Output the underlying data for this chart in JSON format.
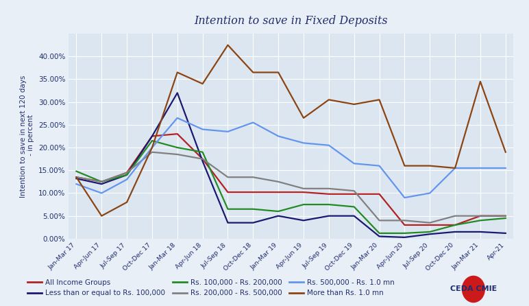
{
  "title": "Intention to save in Fixed Deposits",
  "ylabel": "Intention to save in next 120 days\n - in percent",
  "plot_bg_color": "#dce6f1",
  "fig_bg_color": "#e9eff6",
  "xlabels": [
    "Jan-Mar 17",
    "Apr-Jun 17",
    "Jul-Sep 17",
    "Oct-Dec 17",
    "Jan-Mar 18",
    "Apr-Jun 18",
    "Jul-Sep 18",
    "Oct-Dec 18",
    "Jan-Mar 19",
    "Apr-Jun 19",
    "Jul-Sep 19",
    "Oct-Dec 19",
    "Jan-Mar 20",
    "Apr-Jun 20",
    "Jul-Sep 20",
    "Oct-Dec 20",
    "Jan-Mar 21",
    "Apr-21"
  ],
  "series": [
    {
      "label": "All Income Groups",
      "color": "#b22222",
      "linewidth": 1.6,
      "values": [
        13.5,
        12.5,
        14.5,
        22.5,
        23.0,
        17.5,
        10.2,
        10.2,
        10.2,
        10.2,
        9.8,
        9.8,
        9.8,
        3.0,
        3.0,
        3.0,
        5.0,
        5.0
      ]
    },
    {
      "label": "Less than or equal to Rs. 100,000",
      "color": "#191970",
      "linewidth": 1.6,
      "values": [
        13.2,
        12.0,
        14.0,
        22.5,
        32.0,
        17.0,
        3.5,
        3.5,
        5.0,
        4.0,
        5.0,
        5.0,
        0.5,
        0.3,
        1.0,
        1.5,
        1.5,
        1.2
      ]
    },
    {
      "label": "Rs. 100,000 - Rs. 200,000",
      "color": "#228b22",
      "linewidth": 1.6,
      "values": [
        14.8,
        12.5,
        14.0,
        21.5,
        20.0,
        19.0,
        6.5,
        6.5,
        6.0,
        7.5,
        7.5,
        7.0,
        1.2,
        1.2,
        1.5,
        3.0,
        4.0,
        4.5
      ]
    },
    {
      "label": "Rs. 200,000 - Rs. 500,000",
      "color": "#808080",
      "linewidth": 1.6,
      "values": [
        13.5,
        12.5,
        14.5,
        19.0,
        18.5,
        17.5,
        13.5,
        13.5,
        12.5,
        11.0,
        11.0,
        10.5,
        4.0,
        4.0,
        3.5,
        5.0,
        5.0,
        5.0
      ]
    },
    {
      "label": "Rs. 500,000 - Rs. 1.0 mn",
      "color": "#6495ed",
      "linewidth": 1.6,
      "values": [
        12.0,
        10.0,
        13.0,
        20.0,
        26.5,
        24.0,
        23.5,
        25.5,
        22.5,
        21.0,
        20.5,
        16.5,
        16.0,
        9.0,
        10.0,
        15.5,
        15.5,
        15.5
      ]
    },
    {
      "label": "More than Rs. 1.0 mn",
      "color": "#8b4513",
      "linewidth": 1.6,
      "values": [
        13.5,
        5.0,
        8.0,
        20.0,
        36.5,
        34.0,
        42.5,
        36.5,
        36.5,
        26.5,
        30.5,
        29.5,
        30.5,
        16.0,
        16.0,
        15.5,
        34.5,
        19.0
      ]
    }
  ],
  "ylim": [
    0.0,
    0.45
  ],
  "yticks": [
    0.0,
    0.05,
    0.1,
    0.15,
    0.2,
    0.25,
    0.3,
    0.35,
    0.4
  ],
  "ytick_labels": [
    "0.00%",
    "5.00%",
    "10.00%",
    "15.00%",
    "20.00%",
    "25.00%",
    "30.00%",
    "35.00%",
    "40.00%"
  ],
  "title_color": "#1f2d6e",
  "axis_label_color": "#1f2d6e",
  "tick_label_color": "#1f2d6e",
  "grid_color": "#ffffff",
  "legend_ncol": 3,
  "legend_fontsize": 7.5
}
